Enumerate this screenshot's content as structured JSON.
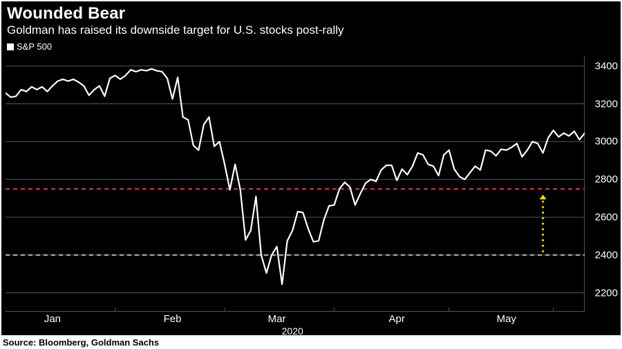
{
  "title": "Wounded Bear",
  "subtitle": "Goldman has raised its downside target for U.S. stocks post-rally",
  "source": "Source: Bloomberg, Goldman Sachs",
  "chart": {
    "type": "line",
    "series_name": "S&P 500",
    "background_color": "#000000",
    "grid_color": "#555555",
    "axis_text_color": "#ffffff",
    "series_color": "#ffffff",
    "line_width": 2.2,
    "axis_fontsize": 15,
    "title_fontsize": 24,
    "subtitle_fontsize": 17,
    "ylim": [
      2100,
      3450
    ],
    "yticks": [
      2200,
      2400,
      2600,
      2800,
      3000,
      3200,
      3400
    ],
    "xlim": [
      0,
      111
    ],
    "x_months": [
      {
        "label": "Jan",
        "x": 9
      },
      {
        "label": "Feb",
        "x": 32
      },
      {
        "label": "Mar",
        "x": 52
      },
      {
        "label": "Apr",
        "x": 75
      },
      {
        "label": "May",
        "x": 96
      }
    ],
    "x_month_ticks": [
      0,
      21,
      42,
      63,
      85,
      105
    ],
    "x_year": {
      "label": "2020",
      "x": 55
    },
    "reference_lines": [
      {
        "y": 2750,
        "color": "#e23b3b",
        "dash": "6,5"
      },
      {
        "y": 2400,
        "color": "#bababa",
        "dash": "6,5"
      }
    ],
    "arrow": {
      "x": 103,
      "y_from": 2420,
      "y_to": 2720,
      "color": "#f5d400",
      "dot_radius": 1.6,
      "dot_gap": 8
    },
    "values": [
      3257,
      3235,
      3240,
      3275,
      3265,
      3290,
      3275,
      3290,
      3265,
      3295,
      3320,
      3330,
      3320,
      3330,
      3315,
      3295,
      3245,
      3275,
      3295,
      3240,
      3335,
      3350,
      3330,
      3350,
      3380,
      3370,
      3380,
      3375,
      3385,
      3375,
      3370,
      3335,
      3225,
      3340,
      3130,
      3115,
      2980,
      2955,
      3090,
      3130,
      2975,
      3000,
      2880,
      2745,
      2880,
      2745,
      2480,
      2530,
      2710,
      2400,
      2305,
      2400,
      2445,
      2245,
      2475,
      2530,
      2630,
      2625,
      2540,
      2470,
      2475,
      2585,
      2660,
      2665,
      2750,
      2785,
      2760,
      2665,
      2725,
      2780,
      2800,
      2790,
      2850,
      2875,
      2875,
      2795,
      2855,
      2825,
      2870,
      2940,
      2930,
      2880,
      2870,
      2820,
      2930,
      2955,
      2855,
      2815,
      2800,
      2835,
      2870,
      2850,
      2955,
      2950,
      2925,
      2960,
      2955,
      2970,
      2990,
      2920,
      2955,
      3000,
      2990,
      2940,
      3020,
      3060,
      3025,
      3045,
      3030,
      3055,
      3010,
      3045
    ]
  }
}
